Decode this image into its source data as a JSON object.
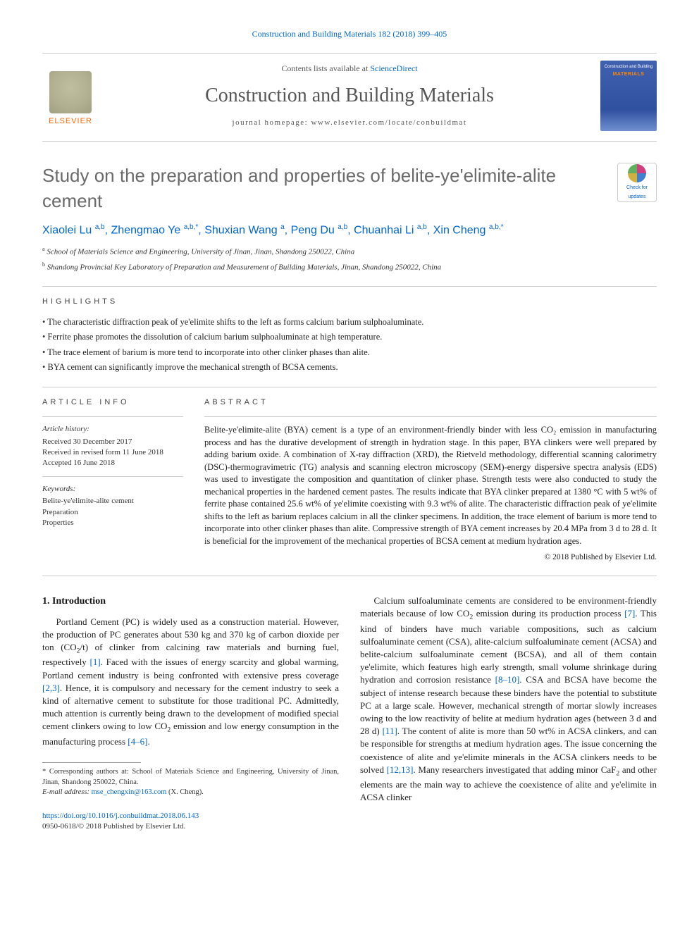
{
  "colors": {
    "link": "#0066cc",
    "title_gray": "#6a6a6a",
    "brand_orange": "#ff6600",
    "text": "#333333",
    "rule": "#cccccc",
    "cover_bg_top": "#4060b0",
    "cover_bg_bottom": "#7090d0"
  },
  "header": {
    "article_ref": "Construction and Building Materials 182 (2018) 399–405",
    "contents_prefix": "Contents lists available at ",
    "contents_link": "ScienceDirect",
    "journal_title": "Construction and Building Materials",
    "homepage_prefix": "journal homepage: ",
    "homepage_url": "www.elsevier.com/locate/conbuildmat",
    "publisher_brand": "ELSEVIER",
    "cover_line1": "Construction and Building",
    "cover_line2": "MATERIALS"
  },
  "updates_badge": {
    "line1": "Check for",
    "line2": "updates"
  },
  "title": "Study on the preparation and properties of belite-ye'elimite-alite cement",
  "authors_html": "Xiaolei Lu <span class='sup'>a,b</span>, Zhengmao Ye <span class='sup'>a,b,*</span>, Shuxian Wang <span class='sup'>a</span>, Peng Du <span class='sup'>a,b</span>, Chuanhai Li <span class='sup'>a,b</span>, Xin Cheng <span class='sup'>a,b,*</span>",
  "affiliations": [
    {
      "marker": "a",
      "text": "School of Materials Science and Engineering, University of Jinan, Jinan, Shandong 250022, China"
    },
    {
      "marker": "b",
      "text": "Shandong Provincial Key Laboratory of Preparation and Measurement of Building Materials, Jinan, Shandong 250022, China"
    }
  ],
  "highlights_heading": "HIGHLIGHTS",
  "highlights": [
    "The characteristic diffraction peak of ye'elimite shifts to the left as forms calcium barium sulphoaluminate.",
    "Ferrite phase promotes the dissolution of calcium barium sulphoaluminate at high temperature.",
    "The trace element of barium is more tend to incorporate into other clinker phases than alite.",
    "BYA cement can significantly improve the mechanical strength of BCSA cements."
  ],
  "article_info": {
    "heading": "ARTICLE INFO",
    "history_label": "Article history:",
    "received": "Received 30 December 2017",
    "revised": "Received in revised form 11 June 2018",
    "accepted": "Accepted 16 June 2018",
    "keywords_label": "Keywords:",
    "keywords": [
      "Belite-ye'elimite-alite cement",
      "Preparation",
      "Properties"
    ]
  },
  "abstract": {
    "heading": "ABSTRACT",
    "text": "Belite-ye'elimite-alite (BYA) cement is a type of an environment-friendly binder with less CO₂ emission in manufacturing process and has the durative development of strength in hydration stage. In this paper, BYA clinkers were well prepared by adding barium oxide. A combination of X-ray diffraction (XRD), the Rietveld methodology, differential scanning calorimetry (DSC)-thermogravimetric (TG) analysis and scanning electron microscopy (SEM)-energy dispersive spectra analysis (EDS) was used to investigate the composition and quantitation of clinker phase. Strength tests were also conducted to study the mechanical properties in the hardened cement pastes. The results indicate that BYA clinker prepared at 1380 °C with 5 wt% of ferrite phase contained 25.6 wt% of ye'elimite coexisting with 9.3 wt% of alite. The characteristic diffraction peak of ye'elimite shifts to the left as barium replaces calcium in all the clinker specimens. In addition, the trace element of barium is more tend to incorporate into other clinker phases than alite. Compressive strength of BYA cement increases by 20.4 MPa from 3 d to 28 d. It is beneficial for the improvement of the mechanical properties of BCSA cement at medium hydration ages.",
    "publisher_line": "© 2018 Published by Elsevier Ltd."
  },
  "introduction": {
    "heading": "1. Introduction",
    "col1_html": "Portland Cement (PC) is widely used as a construction material. However, the production of PC generates about 530 kg and 370 kg of carbon dioxide per ton (CO<span class='sub'>2</span>/t) of clinker from calcining raw materials and burning fuel, respectively <a>[1]</a>. Faced with the issues of energy scarcity and global warming, Portland cement industry is being confronted with extensive press coverage <a>[2,3]</a>. Hence, it is compulsory and necessary for the cement industry to seek a kind of alternative cement to substitute for those traditional PC. Admittedly, much attention is currently being drawn to the development of modified special cement clinkers owing to low CO<span class='sub'>2</span> emission and low energy consumption in the manufacturing process <a>[4–6]</a>.",
    "col2_html": "Calcium sulfoaluminate cements are considered to be environment-friendly materials because of low CO<span class='sub'>2</span> emission during its production process <a>[7]</a>. This kind of binders have much variable compositions, such as calcium sulfoaluminate cement (CSA), alite-calcium sulfoaluminate cement (ACSA) and belite-calcium sulfoaluminate cement (BCSA), and all of them contain ye'elimite, which features high early strength, small volume shrinkage during hydration and corrosion resistance <a>[8–10]</a>. CSA and BCSA have become the subject of intense research because these binders have the potential to substitute PC at a large scale. However, mechanical strength of mortar slowly increases owing to the low reactivity of belite at medium hydration ages (between 3 d and 28 d) <a>[11]</a>. The content of alite is more than 50 wt% in ACSA clinkers, and can be responsible for strengths at medium hydration ages. The issue concerning the coexistence of alite and ye'elimite minerals in the ACSA clinkers needs to be solved <a>[12,13]</a>. Many researchers investigated that adding minor CaF<span class='sub'>2</span> and other elements are the main way to achieve the coexistence of alite and ye'elimite in ACSA clinker"
  },
  "footnote": {
    "corr": "* Corresponding authors at: School of Materials Science and Engineering, University of Jinan, Jinan, Shandong 250022, China.",
    "email_label": "E-mail address:",
    "email": "mse_chengxin@163.com",
    "email_suffix": "(X. Cheng)."
  },
  "doi": {
    "url": "https://doi.org/10.1016/j.conbuildmat.2018.06.143",
    "issn_line": "0950-0618/© 2018 Published by Elsevier Ltd."
  }
}
